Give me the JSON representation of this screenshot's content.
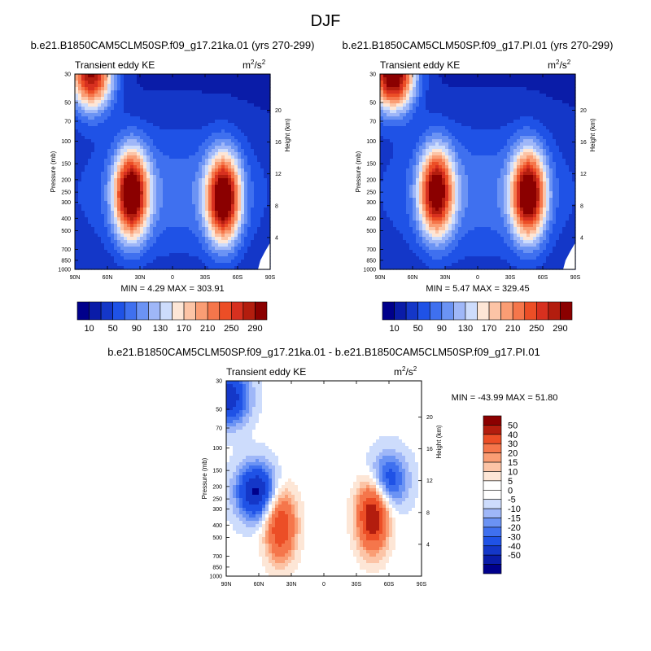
{
  "figure_title": "DJF",
  "chart_data": [
    {
      "type": "heatmap",
      "title": "b.e21.B1850CAM5CLM50SP.f09_g17.21ka.01 (yrs 270-299)",
      "subtitle": "Transient eddy KE",
      "units": {
        "base": "m",
        "sup1": "2",
        "mid": "/s",
        "sup2": "2"
      },
      "ylabel": "Pressure (mb)",
      "ylabel_right": "Height (km)",
      "xticks": [
        "90N",
        "60N",
        "30N",
        "0",
        "30S",
        "60S",
        "90S"
      ],
      "yticks": [
        "30",
        "50",
        "70",
        "100",
        "150",
        "200",
        "250",
        "300",
        "400",
        "500",
        "700",
        "850",
        "1000"
      ],
      "yticks_right": [
        "4",
        "8",
        "12",
        "16",
        "20"
      ],
      "stats_text": "MIN =   4.29  MAX = 303.91",
      "min": 4.29,
      "max": 303.91,
      "colorbar_labels": [
        "10",
        "50",
        "90",
        "130",
        "170",
        "210",
        "250",
        "290"
      ],
      "features": [
        {
          "lat": 75,
          "p": 30,
          "amp": 290,
          "note": "upper-left maximum"
        },
        {
          "lat": 38,
          "p": 260,
          "amp": 300,
          "note": "NH jet"
        },
        {
          "lat": -47,
          "p": 280,
          "amp": 303.91,
          "note": "SH jet"
        }
      ]
    },
    {
      "type": "heatmap",
      "title": "b.e21.B1850CAM5CLM50SP.f09_g17.PI.01 (yrs 270-299)",
      "subtitle": "Transient eddy KE",
      "units": {
        "base": "m",
        "sup1": "2",
        "mid": "/s",
        "sup2": "2"
      },
      "ylabel": "Pressure (mb)",
      "ylabel_right": "Height (km)",
      "xticks": [
        "90N",
        "60N",
        "30N",
        "0",
        "30S",
        "60S",
        "90S"
      ],
      "yticks": [
        "30",
        "50",
        "70",
        "100",
        "150",
        "200",
        "250",
        "300",
        "400",
        "500",
        "700",
        "850",
        "1000"
      ],
      "yticks_right": [
        "4",
        "8",
        "12",
        "16",
        "20"
      ],
      "stats_text": "MIN =   5.47  MAX = 329.45",
      "min": 5.47,
      "max": 329.45,
      "colorbar_labels": [
        "10",
        "50",
        "90",
        "130",
        "170",
        "210",
        "250",
        "290"
      ],
      "features": [
        {
          "lat": 78,
          "p": 30,
          "amp": 329.45,
          "note": "upper-left maximum"
        },
        {
          "lat": 38,
          "p": 250,
          "amp": 280,
          "note": "NH jet"
        },
        {
          "lat": -47,
          "p": 260,
          "amp": 300,
          "note": "SH jet"
        }
      ]
    },
    {
      "type": "heatmap",
      "title": "b.e21.B1850CAM5CLM50SP.f09_g17.21ka.01 - b.e21.B1850CAM5CLM50SP.f09_g17.PI.01",
      "subtitle": "Transient eddy KE",
      "units": {
        "base": "m",
        "sup1": "2",
        "mid": "/s",
        "sup2": "2"
      },
      "ylabel": "Pressure (mb)",
      "ylabel_right": "Height (km)",
      "xticks": [
        "90N",
        "60N",
        "30N",
        "0",
        "30S",
        "60S",
        "90S"
      ],
      "yticks": [
        "30",
        "50",
        "70",
        "100",
        "150",
        "200",
        "250",
        "300",
        "400",
        "500",
        "700",
        "850",
        "1000"
      ],
      "yticks_right": [
        "4",
        "8",
        "12",
        "16",
        "20"
      ],
      "stats_text": "MIN = -43.99  MAX =  51.80",
      "min": -43.99,
      "max": 51.8,
      "colorbar_labels": [
        "50",
        "40",
        "30",
        "20",
        "15",
        "10",
        "5",
        "0",
        "-5",
        "-10",
        "-15",
        "-20",
        "-30",
        "-40",
        "-50"
      ],
      "features": [
        {
          "lat": 40,
          "p": 400,
          "amp": 40,
          "note": "positive NH"
        },
        {
          "lat": -45,
          "p": 330,
          "amp": 51.8,
          "note": "positive SH"
        },
        {
          "lat": 62,
          "p": 220,
          "amp": -43.99,
          "note": "negative NH"
        },
        {
          "lat": -58,
          "p": 180,
          "amp": -30,
          "note": "negative SH"
        },
        {
          "lat": 88,
          "p": 40,
          "amp": -40,
          "note": "negative polar top"
        }
      ]
    }
  ],
  "colors": {
    "div_scale": [
      "#00008b",
      "#0a1ca8",
      "#1437c8",
      "#1f52e6",
      "#3f70ef",
      "#6b93f4",
      "#9fb7f8",
      "#cddcfc",
      "#fde6d6",
      "#fcc4a6",
      "#fa9d74",
      "#f5764b",
      "#ec4e26",
      "#d7301f",
      "#b31d0e",
      "#8b0000"
    ]
  }
}
